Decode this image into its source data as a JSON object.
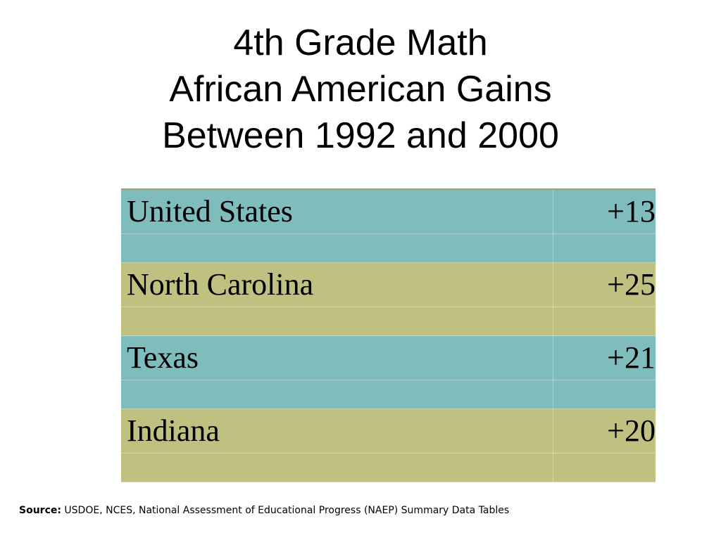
{
  "title": {
    "line1": "4th Grade Math",
    "line2": "African American Gains",
    "line3": "Between 1992 and 2000"
  },
  "table": {
    "rows": [
      {
        "label": "United States",
        "value": "+13",
        "color": "#7fbdbd"
      },
      {
        "label": "North Carolina",
        "value": "+25",
        "color": "#c0c080"
      },
      {
        "label": "Texas",
        "value": "+21",
        "color": "#7fbdbd"
      },
      {
        "label": "Indiana",
        "value": "+20",
        "color": "#c0c080"
      }
    ]
  },
  "source": {
    "label": "Source:",
    "text": "USDOE, NCES, National Assessment of Educational Progress (NAEP) Summary Data Tables"
  }
}
